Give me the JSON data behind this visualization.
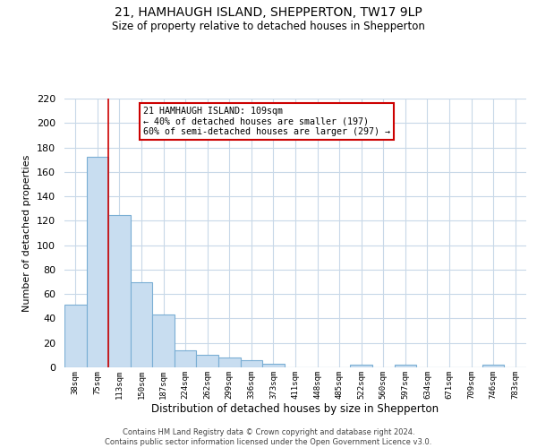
{
  "title": "21, HAMHAUGH ISLAND, SHEPPERTON, TW17 9LP",
  "subtitle": "Size of property relative to detached houses in Shepperton",
  "xlabel": "Distribution of detached houses by size in Shepperton",
  "ylabel": "Number of detached properties",
  "bar_labels": [
    "38sqm",
    "75sqm",
    "113sqm",
    "150sqm",
    "187sqm",
    "224sqm",
    "262sqm",
    "299sqm",
    "336sqm",
    "373sqm",
    "411sqm",
    "448sqm",
    "485sqm",
    "522sqm",
    "560sqm",
    "597sqm",
    "634sqm",
    "671sqm",
    "709sqm",
    "746sqm",
    "783sqm"
  ],
  "bar_values": [
    51,
    172,
    125,
    70,
    43,
    14,
    10,
    8,
    6,
    3,
    0,
    0,
    0,
    2,
    0,
    2,
    0,
    0,
    0,
    2,
    0
  ],
  "bar_color": "#c8ddf0",
  "bar_edge_color": "#7aaed4",
  "vline_x_index": 2,
  "vline_color": "#cc0000",
  "annotation_title": "21 HAMHAUGH ISLAND: 109sqm",
  "annotation_line1": "← 40% of detached houses are smaller (197)",
  "annotation_line2": "60% of semi-detached houses are larger (297) →",
  "annotation_box_color": "#ffffff",
  "annotation_box_edge_color": "#cc0000",
  "ylim": [
    0,
    220
  ],
  "yticks": [
    0,
    20,
    40,
    60,
    80,
    100,
    120,
    140,
    160,
    180,
    200,
    220
  ],
  "footer_line1": "Contains HM Land Registry data © Crown copyright and database right 2024.",
  "footer_line2": "Contains public sector information licensed under the Open Government Licence v3.0.",
  "background_color": "#ffffff",
  "grid_color": "#c8d8e8"
}
